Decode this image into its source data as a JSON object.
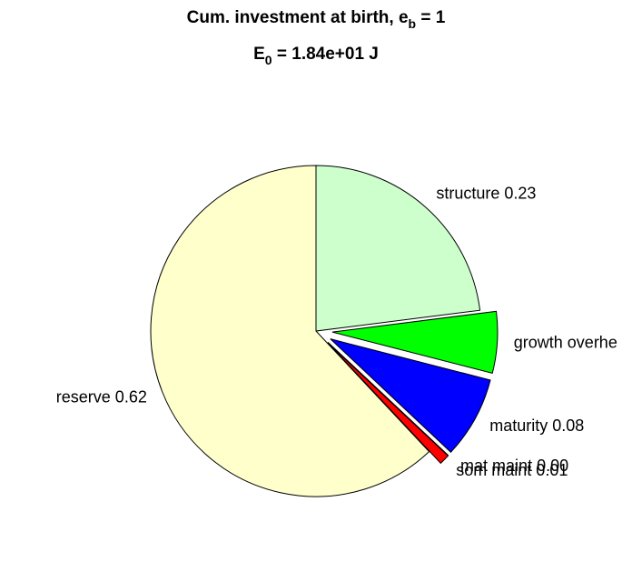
{
  "chart_data": {
    "type": "pie",
    "title": [
      "Cum. investment at birth, e",
      "b",
      " = 1"
    ],
    "subtitle": [
      "E",
      "0",
      " = 1.84e+01 J"
    ],
    "labels": [
      "structure 0.23",
      "growth overhe",
      "maturity 0.08",
      "mat maint 0.00",
      "som maint 0.01",
      "reserve 0.62"
    ],
    "values": [
      0.23,
      0.06,
      0.08,
      0.0,
      0.01,
      0.62
    ],
    "colors": [
      "#ccffcc",
      "#00ff00",
      "#0000ff",
      "#ff8800",
      "#ff0000",
      "#ffffcc"
    ],
    "explode": [
      false,
      true,
      true,
      true,
      true,
      false
    ]
  }
}
